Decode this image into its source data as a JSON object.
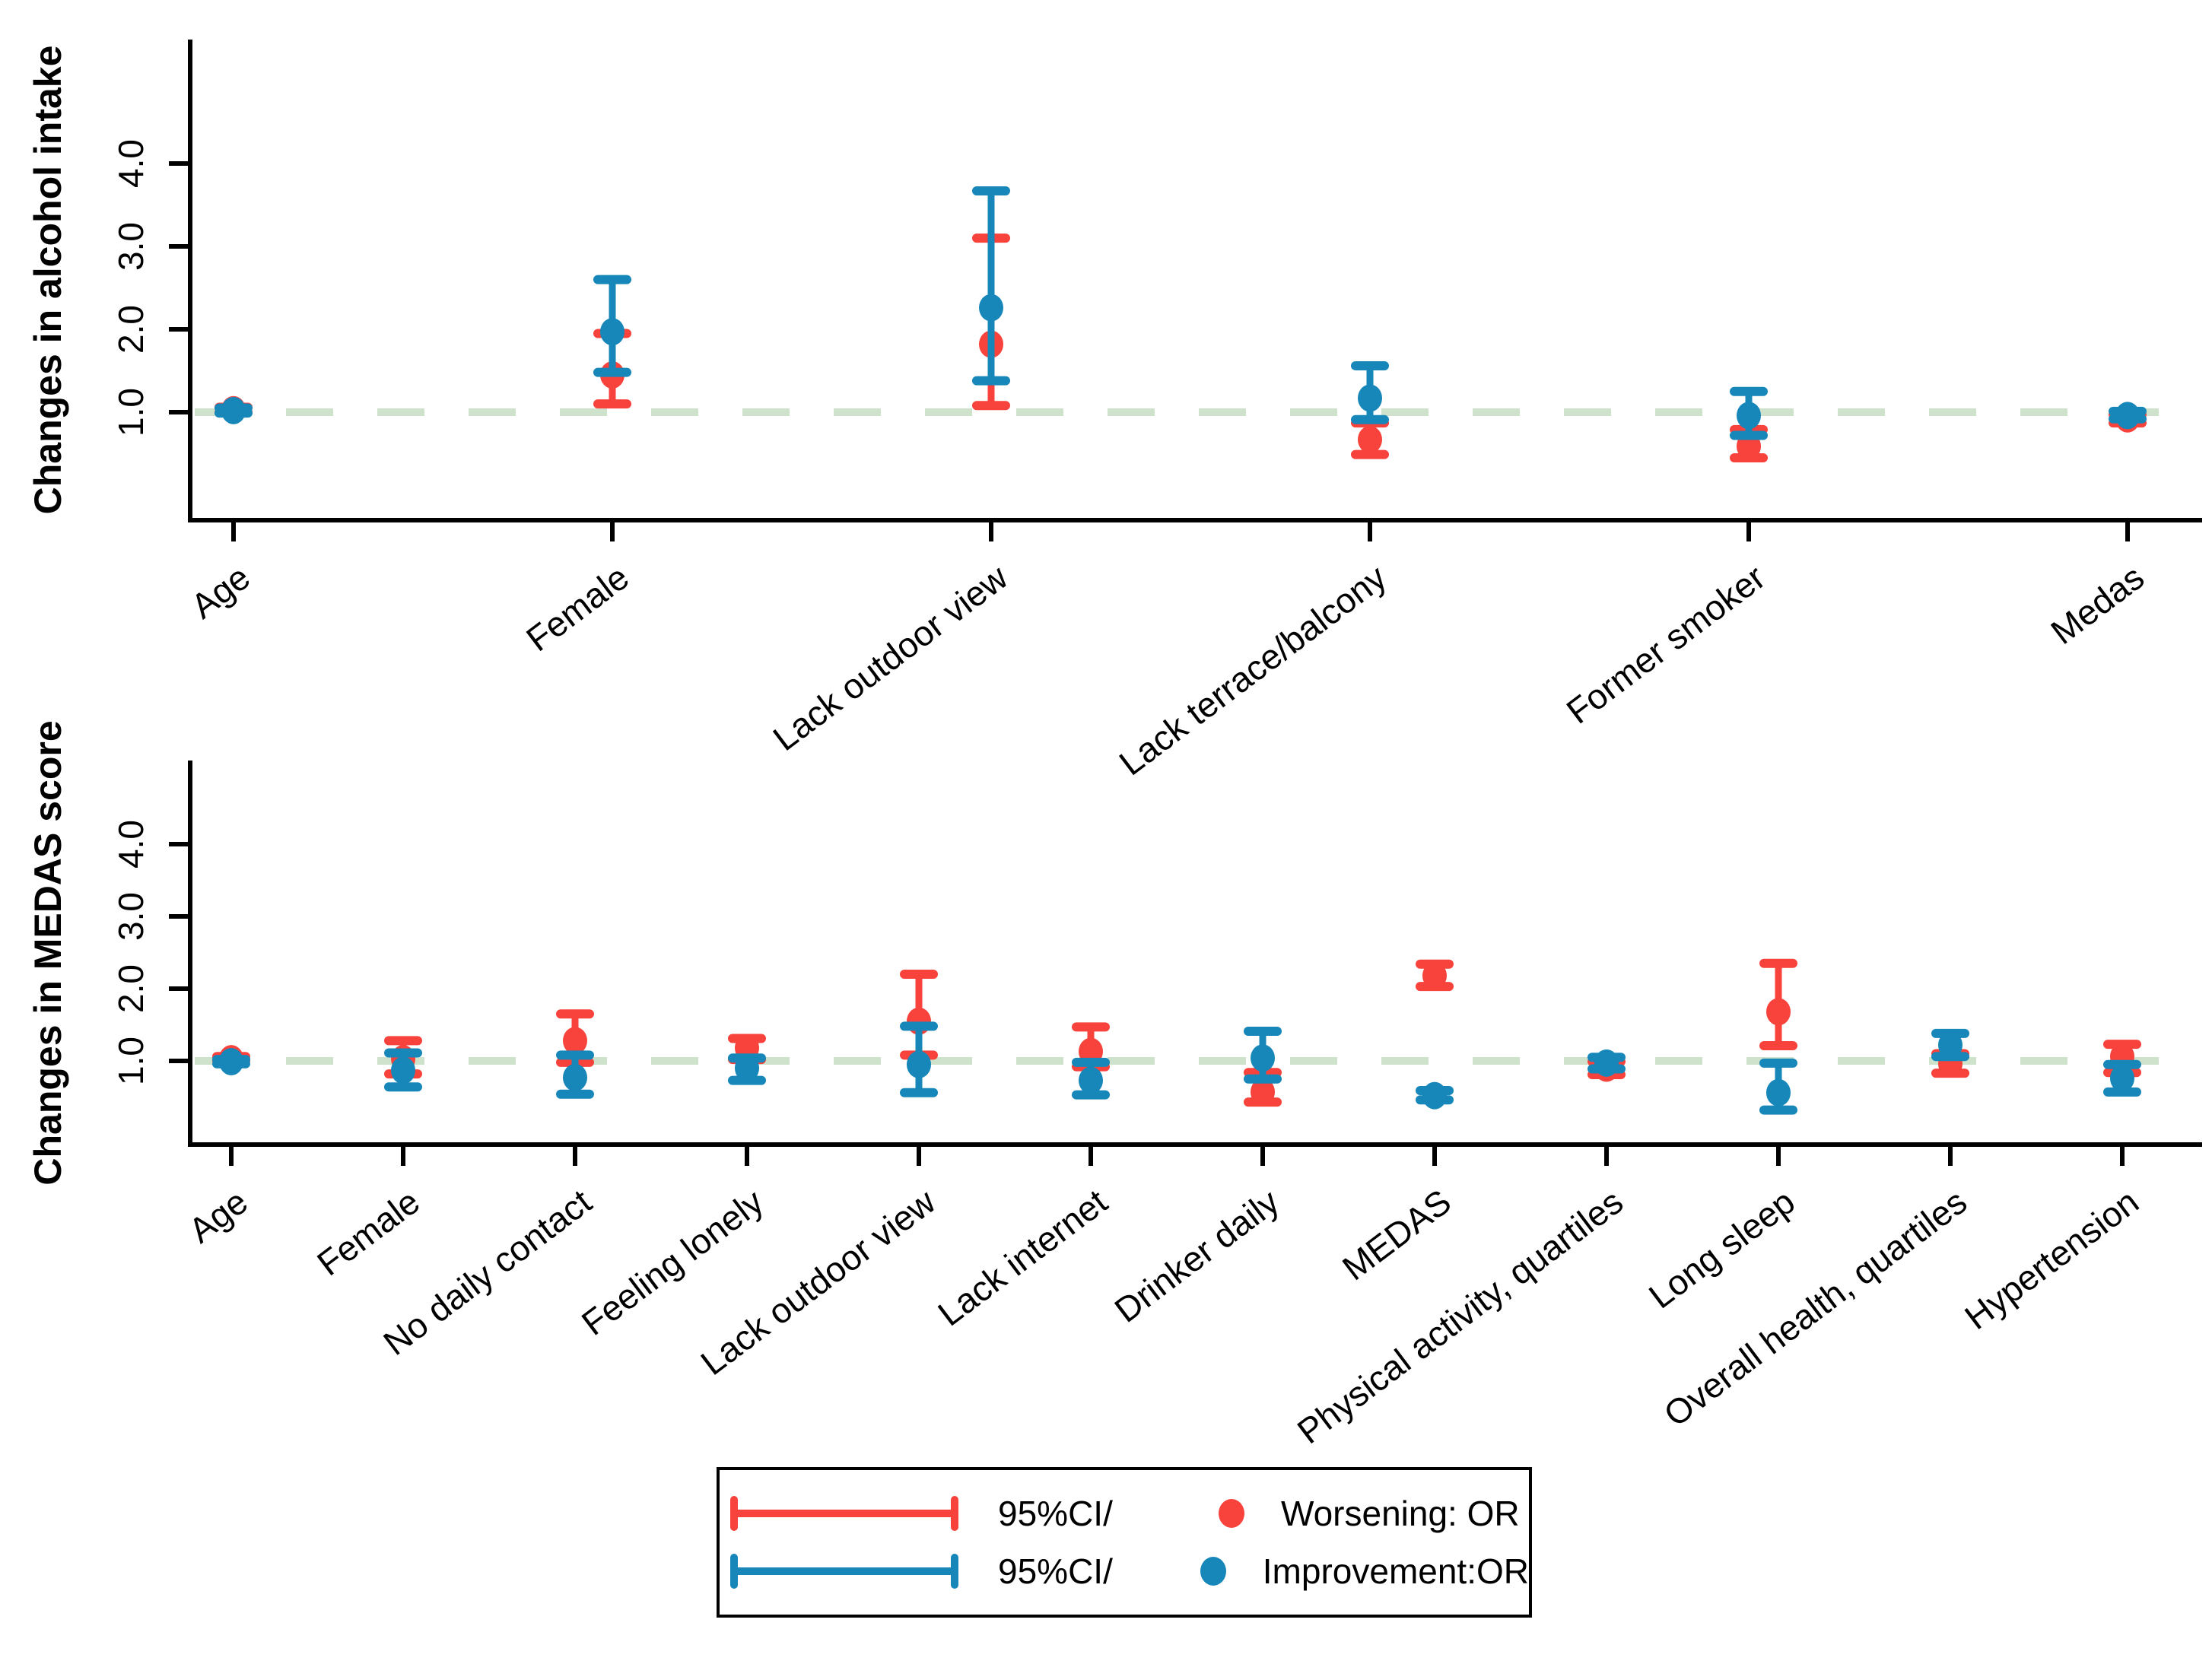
{
  "figure": {
    "background": "#ffffff",
    "description": "Two-panel forest plot of odds ratios with 95% confidence intervals"
  },
  "colors": {
    "worsening": "#f8423c",
    "improvement": "#1787b9",
    "reference_line": "#cfe3cc",
    "axis": "#000000"
  },
  "legend": {
    "ci_red_label": "95%CI/",
    "ci_blue_label": "95%CI/",
    "worsening_label": "Worsening: OR",
    "improvement_label": "Improvement:OR"
  },
  "chart_data": [
    {
      "type": "scatter",
      "subtype": "forest-errorbar",
      "title": "",
      "ylabel": "Changes in alcohol intake",
      "xlabel": "",
      "yticks": [
        {
          "value": 1,
          "label": "1.0"
        },
        {
          "value": 2,
          "label": "2.0"
        },
        {
          "value": 3,
          "label": "3.0"
        },
        {
          "value": 4,
          "label": "4.0"
        }
      ],
      "ylim": [
        -0.3,
        5.5
      ],
      "reference_line": 1.0,
      "grid": false,
      "legend_position": "bottom-center",
      "categories": [
        "Age",
        "Female",
        "Lack  outdoor view",
        "Lack  terrace/balcony",
        "Former smoker",
        "Medas"
      ],
      "series": [
        {
          "name": "Worsening: OR",
          "color": "#f8423c",
          "points": [
            {
              "or": 1.03,
              "lo": 1.0,
              "hi": 1.06
            },
            {
              "or": 1.45,
              "lo": 1.1,
              "hi": 1.95
            },
            {
              "or": 1.82,
              "lo": 1.08,
              "hi": 3.1
            },
            {
              "or": 0.67,
              "lo": 0.49,
              "hi": 0.87
            },
            {
              "or": 0.59,
              "lo": 0.45,
              "hi": 0.79
            },
            {
              "or": 0.92,
              "lo": 0.87,
              "hi": 0.97
            }
          ]
        },
        {
          "name": "Improvement:OR",
          "color": "#1787b9",
          "points": [
            {
              "or": 1.02,
              "lo": 0.99,
              "hi": 1.05
            },
            {
              "or": 1.97,
              "lo": 1.48,
              "hi": 2.6
            },
            {
              "or": 2.26,
              "lo": 1.38,
              "hi": 3.67
            },
            {
              "or": 1.17,
              "lo": 0.91,
              "hi": 1.56
            },
            {
              "or": 0.96,
              "lo": 0.72,
              "hi": 1.25
            },
            {
              "or": 0.96,
              "lo": 0.92,
              "hi": 1.01
            }
          ]
        }
      ]
    },
    {
      "type": "scatter",
      "subtype": "forest-errorbar",
      "title": "",
      "ylabel": "Changes in MEDAS score",
      "xlabel": "",
      "yticks": [
        {
          "value": 1,
          "label": "1.0"
        },
        {
          "value": 2,
          "label": "2.0"
        },
        {
          "value": 3,
          "label": "3.0"
        },
        {
          "value": 4,
          "label": "4.0"
        }
      ],
      "ylim": [
        -0.2,
        5.2
      ],
      "reference_line": 1.0,
      "grid": false,
      "legend_position": "bottom-center",
      "categories": [
        "Age",
        "Female",
        "No daily contact",
        "Feeling lonely",
        "Lack outdoor view",
        "Lack internet",
        "Drinker daily",
        "MEDAS",
        "Physical activity, quartiles",
        "Long sleep",
        "Overall health, quartiles",
        "Hypertension"
      ],
      "series": [
        {
          "name": "Worsening: OR",
          "color": "#f8423c",
          "points": [
            {
              "or": 1.03,
              "lo": 1.0,
              "hi": 1.06
            },
            {
              "or": 1.03,
              "lo": 0.82,
              "hi": 1.28
            },
            {
              "or": 1.28,
              "lo": 0.98,
              "hi": 1.65
            },
            {
              "or": 1.18,
              "lo": 1.02,
              "hi": 1.31
            },
            {
              "or": 1.55,
              "lo": 1.08,
              "hi": 2.2
            },
            {
              "or": 1.13,
              "lo": 0.92,
              "hi": 1.47
            },
            {
              "or": 0.57,
              "lo": 0.43,
              "hi": 0.84
            },
            {
              "or": 2.18,
              "lo": 2.03,
              "hi": 2.34
            },
            {
              "or": 0.9,
              "lo": 0.81,
              "hi": 0.99
            },
            {
              "or": 1.68,
              "lo": 1.21,
              "hi": 2.35
            },
            {
              "or": 0.96,
              "lo": 0.83,
              "hi": 1.1
            },
            {
              "or": 1.06,
              "lo": 0.84,
              "hi": 1.23
            }
          ]
        },
        {
          "name": "Improvement:OR",
          "color": "#1787b9",
          "points": [
            {
              "or": 0.99,
              "lo": 0.96,
              "hi": 1.02
            },
            {
              "or": 0.87,
              "lo": 0.64,
              "hi": 1.11
            },
            {
              "or": 0.77,
              "lo": 0.54,
              "hi": 1.08
            },
            {
              "or": 0.9,
              "lo": 0.73,
              "hi": 1.04
            },
            {
              "or": 0.95,
              "lo": 0.56,
              "hi": 1.48
            },
            {
              "or": 0.73,
              "lo": 0.53,
              "hi": 0.98
            },
            {
              "or": 1.04,
              "lo": 0.75,
              "hi": 1.41
            },
            {
              "or": 0.52,
              "lo": 0.46,
              "hi": 0.59
            },
            {
              "or": 0.97,
              "lo": 0.89,
              "hi": 1.05
            },
            {
              "or": 0.56,
              "lo": 0.32,
              "hi": 0.97
            },
            {
              "or": 1.22,
              "lo": 1.06,
              "hi": 1.38
            },
            {
              "or": 0.76,
              "lo": 0.57,
              "hi": 0.95
            }
          ]
        }
      ]
    }
  ]
}
